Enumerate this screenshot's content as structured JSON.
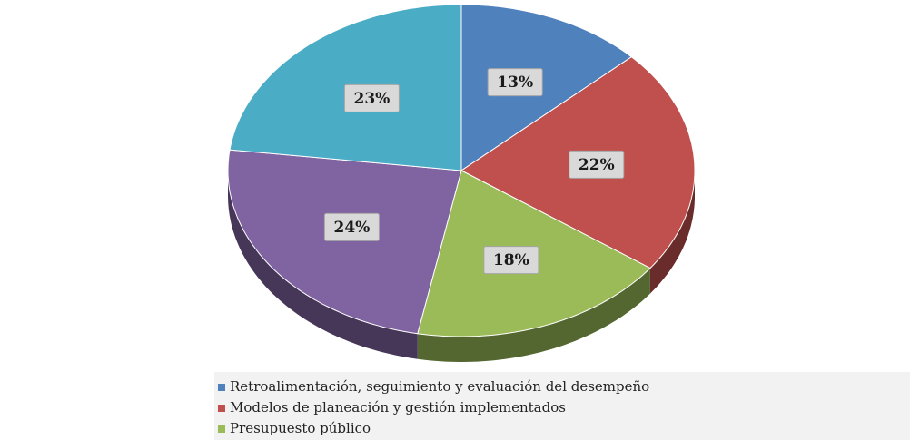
{
  "chart_data": {
    "type": "pie",
    "categories": [
      "Retroalimentación, seguimiento y evaluación del desempeño",
      "Modelos de planeación y gestión implementados",
      "Presupuesto público",
      null,
      null
    ],
    "values": [
      13,
      22,
      18,
      24,
      23
    ],
    "value_labels": [
      "13%",
      "22%",
      "18%",
      "24%",
      "23%"
    ],
    "colors": [
      "#4f81bd",
      "#c0504d",
      "#9bbb59",
      "#8064a2",
      "#4bacc6"
    ],
    "legend": "bottom"
  }
}
